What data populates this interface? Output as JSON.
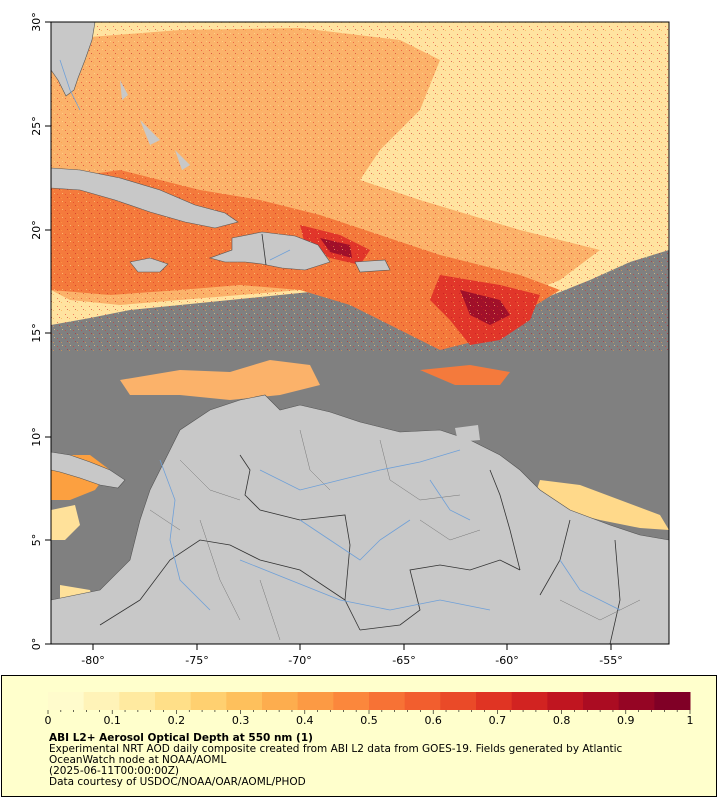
{
  "map": {
    "lat_ticks": [
      "0°",
      "5°",
      "10°",
      "15°",
      "20°",
      "25°",
      "30°"
    ],
    "lon_ticks": [
      "-80°",
      "-75°",
      "-70°",
      "-65°",
      "-60°",
      "-55°"
    ],
    "colors": {
      "ocean_nodata": "#808080",
      "land": "#c8c8c8",
      "border": "#333333",
      "river": "#6fa0d8",
      "aod_low": "#ffe89a",
      "aod_mid": "#fca040",
      "aod_high": "#e32b22",
      "aod_max": "#8a0025"
    }
  },
  "legend": {
    "scale_labels": [
      "0",
      "0.1",
      "0.2",
      "0.3",
      "0.4",
      "0.5",
      "0.6",
      "0.7",
      "0.8",
      "0.9",
      "1"
    ],
    "scale_colors": [
      "#fffbcc",
      "#fff3b8",
      "#ffeaa0",
      "#ffdf88",
      "#ffd070",
      "#fec05c",
      "#fdad4e",
      "#fc9a44",
      "#fb873c",
      "#f77235",
      "#f25e2e",
      "#ea4a28",
      "#e03423",
      "#d22321",
      "#c01520",
      "#ab0c22",
      "#950524",
      "#800026"
    ],
    "title": "ABI L2+ Aerosol Optical Depth at 550 nm (1)",
    "line1": "Experimental NRT AOD daily composite created from ABI L2 data from GOES-19. Fields generated by Atlantic",
    "line2": "OceanWatch node at NOAA/AOML",
    "line3": "(2025-06-11T00:00:00Z)",
    "line4": "Data courtesy of USDOC/NOAA/OAR/AOML/PHOD"
  }
}
